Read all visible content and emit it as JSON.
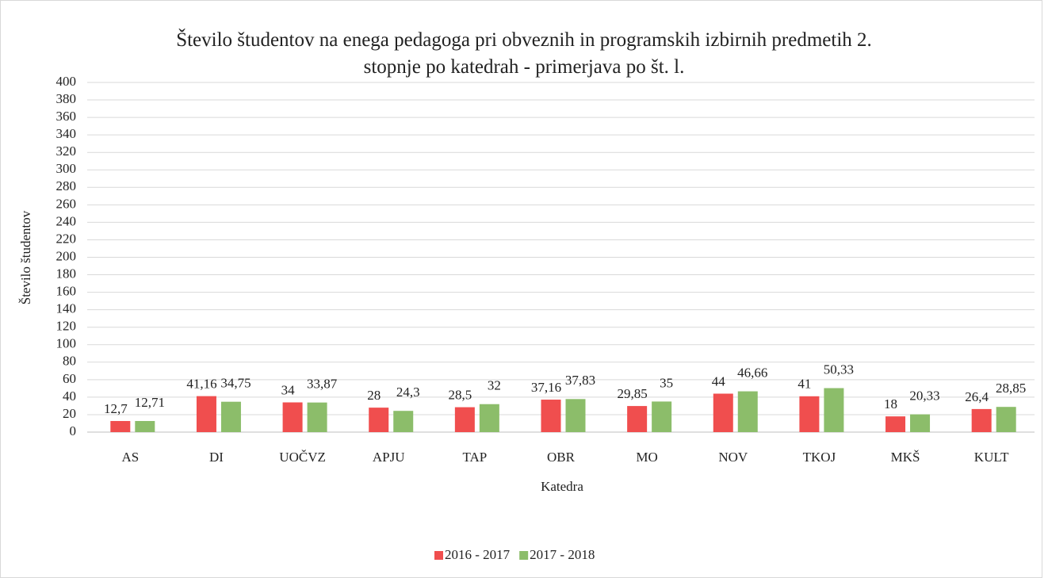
{
  "chart_data": {
    "type": "bar",
    "title": "Število študentov na enega pedagoga pri obveznih in programskih izbirnih predmetih 2. stopnje po katedrah - primerjava po št. l.",
    "x_label": "Katedra",
    "y_label": "Število študentov",
    "categories": [
      "AS",
      "DI",
      "UOČVZ",
      "APJU",
      "TAP",
      "OBR",
      "MO",
      "NOV",
      "TKOJ",
      "MKŠ",
      "KULT"
    ],
    "series": [
      {
        "name": "2016 - 2017",
        "color": "#f04e4e",
        "values": [
          12.7,
          41.16,
          34,
          28,
          28.5,
          37.16,
          29.85,
          44,
          41,
          18,
          26.4
        ],
        "value_labels": [
          "12,7",
          "41,16",
          "34",
          "28",
          "28,5",
          "37,16",
          "29,85",
          "44",
          "41",
          "18",
          "26,4"
        ]
      },
      {
        "name": "2017 - 2018",
        "color": "#8cbd6a",
        "values": [
          12.71,
          34.75,
          33.87,
          24.3,
          32,
          37.83,
          35,
          46.66,
          50.33,
          20.33,
          28.85
        ],
        "value_labels": [
          "12,71",
          "34,75",
          "33,87",
          "24,3",
          "32",
          "37,83",
          "35",
          "46,66",
          "50,33",
          "20,33",
          "28,85"
        ]
      }
    ],
    "ylim": [
      0,
      400
    ],
    "yticks": [
      0,
      20,
      40,
      60,
      80,
      100,
      120,
      140,
      160,
      180,
      200,
      220,
      240,
      260,
      280,
      300,
      320,
      340,
      360,
      380,
      400
    ],
    "grid": true,
    "legend": "bottom"
  }
}
